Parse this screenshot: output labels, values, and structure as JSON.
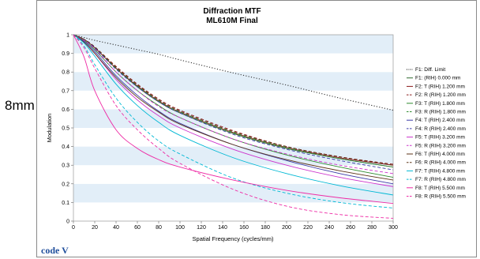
{
  "side_label": "8mm",
  "logo": "code V",
  "chart_data": {
    "type": "line",
    "title": "Diffraction MTF",
    "subtitle": "ML610M Final",
    "xlabel": "Spatial Frequency (cycles/mm)",
    "ylabel": "Modulation",
    "xlim": [
      0,
      300
    ],
    "ylim": [
      0,
      1
    ],
    "xticks": [
      0,
      20,
      40,
      60,
      80,
      100,
      120,
      140,
      160,
      180,
      200,
      220,
      240,
      260,
      280,
      300
    ],
    "yticks": [
      0,
      0.1,
      0.2,
      0.3,
      0.4,
      0.5,
      0.6,
      0.7,
      0.8,
      0.9,
      1
    ],
    "grid": "horizontal bands",
    "legend_position": "right",
    "x": [
      0,
      10,
      20,
      40,
      60,
      80,
      100,
      150,
      200,
      250,
      300
    ],
    "series": [
      {
        "name": "F1: Diff. Limit",
        "color": "#333333",
        "dash": "dotted",
        "values": [
          1.0,
          0.985,
          0.97,
          0.945,
          0.92,
          0.895,
          0.865,
          0.795,
          0.73,
          0.66,
          0.595
        ]
      },
      {
        "name": "F1: (RIH) 0.000 mm",
        "color": "#2e6b2e",
        "dash": "solid",
        "values": [
          1.0,
          0.975,
          0.93,
          0.82,
          0.72,
          0.64,
          0.58,
          0.47,
          0.39,
          0.335,
          0.29
        ]
      },
      {
        "name": "F2: T (RIH) 1.200 mm",
        "color": "#8b1a1a",
        "dash": "solid",
        "values": [
          1.0,
          0.975,
          0.93,
          0.82,
          0.725,
          0.645,
          0.585,
          0.475,
          0.395,
          0.34,
          0.3
        ]
      },
      {
        "name": "F2: R (RIH) 1.200 mm",
        "color": "#8b1a1a",
        "dash": "dashed",
        "values": [
          1.0,
          0.975,
          0.935,
          0.83,
          0.735,
          0.655,
          0.595,
          0.485,
          0.4,
          0.345,
          0.305
        ]
      },
      {
        "name": "F3: T (RIH) 1.800 mm",
        "color": "#2e8b2e",
        "dash": "solid",
        "values": [
          1.0,
          0.97,
          0.92,
          0.8,
          0.7,
          0.62,
          0.555,
          0.44,
          0.355,
          0.29,
          0.235
        ]
      },
      {
        "name": "F3: R (RIH) 1.800 mm",
        "color": "#2e8b2e",
        "dash": "dashed",
        "values": [
          1.0,
          0.975,
          0.93,
          0.82,
          0.725,
          0.645,
          0.585,
          0.475,
          0.395,
          0.335,
          0.29
        ]
      },
      {
        "name": "F4: T (RIH) 2.400 mm",
        "color": "#3a3aa8",
        "dash": "solid",
        "values": [
          1.0,
          0.965,
          0.91,
          0.78,
          0.675,
          0.59,
          0.525,
          0.41,
          0.325,
          0.255,
          0.2
        ]
      },
      {
        "name": "F4: R (RIH) 2.400 mm",
        "color": "#3a3aa8",
        "dash": "dashed",
        "values": [
          1.0,
          0.975,
          0.93,
          0.815,
          0.72,
          0.64,
          0.58,
          0.465,
          0.385,
          0.325,
          0.275
        ]
      },
      {
        "name": "F5: T (RIH) 3.200 mm",
        "color": "#cc33cc",
        "dash": "solid",
        "values": [
          1.0,
          0.96,
          0.9,
          0.76,
          0.65,
          0.565,
          0.5,
          0.385,
          0.3,
          0.235,
          0.185
        ]
      },
      {
        "name": "F5: R (RIH) 3.200 mm",
        "color": "#cc33cc",
        "dash": "dashed",
        "values": [
          1.0,
          0.97,
          0.925,
          0.8,
          0.7,
          0.615,
          0.555,
          0.44,
          0.36,
          0.3,
          0.255
        ]
      },
      {
        "name": "F6: T (RIH) 4.000 mm",
        "color": "#5c3317",
        "dash": "solid",
        "values": [
          1.0,
          0.96,
          0.9,
          0.77,
          0.665,
          0.585,
          0.52,
          0.41,
          0.33,
          0.27,
          0.22
        ]
      },
      {
        "name": "F6: R (RIH) 4.000 mm",
        "color": "#5c3317",
        "dash": "dashed",
        "values": [
          1.0,
          0.975,
          0.935,
          0.825,
          0.73,
          0.65,
          0.59,
          0.48,
          0.4,
          0.345,
          0.3
        ]
      },
      {
        "name": "F7: T (RIH) 4.800 mm",
        "color": "#00b8d4",
        "dash": "solid",
        "values": [
          1.0,
          0.955,
          0.885,
          0.735,
          0.62,
          0.53,
          0.46,
          0.34,
          0.255,
          0.19,
          0.14
        ]
      },
      {
        "name": "F7: R (RIH) 4.800 mm",
        "color": "#00b8d4",
        "dash": "dashed",
        "values": [
          1.0,
          0.94,
          0.84,
          0.66,
          0.53,
          0.43,
          0.36,
          0.23,
          0.15,
          0.1,
          0.07
        ]
      },
      {
        "name": "F8: T (RIH) 5.500 mm",
        "color": "#ee2aa5",
        "dash": "solid",
        "values": [
          1.0,
          0.88,
          0.7,
          0.49,
          0.39,
          0.33,
          0.29,
          0.22,
          0.165,
          0.125,
          0.095
        ]
      },
      {
        "name": "F8: R (RIH) 5.500 mm",
        "color": "#ee2aa5",
        "dash": "dashed",
        "values": [
          1.0,
          0.93,
          0.82,
          0.62,
          0.49,
          0.39,
          0.31,
          0.17,
          0.08,
          0.035,
          0.015
        ]
      }
    ]
  }
}
